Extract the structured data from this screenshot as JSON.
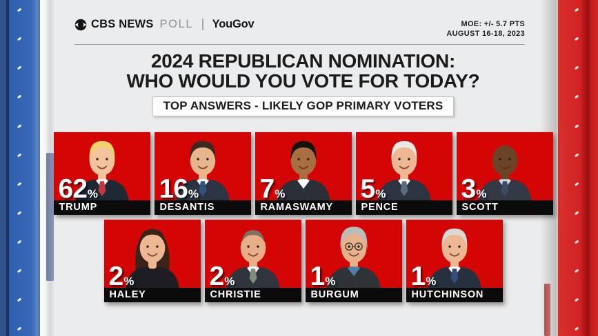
{
  "colors": {
    "bg": "#ebeced",
    "card_red": "#d40505",
    "name_bar": "#0b0b0b",
    "title_text": "#1b1b1b",
    "pct_text": "#ffffff",
    "edge_blue": "#3766b6",
    "edge_blue_dark": "#1c2f5d",
    "edge_red": "#d22222",
    "edge_red_dark": "#a01313"
  },
  "header": {
    "logo": {
      "eye_icon": "cbs-eye-icon",
      "network": "CBS NEWS",
      "program": "POLL",
      "partner": "YouGov"
    },
    "moe": {
      "line1": "MOE: +/- 5.7 PTS",
      "line2": "AUGUST 16-18, 2023"
    }
  },
  "title": {
    "line1": "2024 REPUBLICAN NOMINATION:",
    "line2": "WHO WOULD YOU VOTE FOR TODAY?"
  },
  "subtitle": "TOP ANSWERS - LIKELY GOP PRIMARY VOTERS",
  "unit": "%",
  "chart_data": {
    "type": "bar",
    "title": "2024 Republican Nomination: Who would you vote for today?",
    "subtitle": "Top answers - likely GOP primary voters",
    "note": "MOE: +/- 5.7 PTS | AUGUST 16-18, 2023",
    "unit": "percent",
    "categories": [
      "TRUMP",
      "DESANTIS",
      "RAMASWAMY",
      "PENCE",
      "SCOTT",
      "HALEY",
      "CHRISTIE",
      "BURGUM",
      "HUTCHINSON"
    ],
    "values": [
      62,
      16,
      7,
      5,
      3,
      2,
      2,
      1,
      1
    ],
    "layout": "pictogram grid, 5 cards top row, 4 cards bottom row"
  },
  "candidates": [
    {
      "name": "TRUMP",
      "pct": 62,
      "avatar": {
        "style": "short",
        "skin": "#f4c49c",
        "hair": "#f0d268",
        "suit": "#1f2835",
        "shirt": "#ffffff",
        "tie": "#c03a3a",
        "glasses": false
      }
    },
    {
      "name": "DESANTIS",
      "pct": 16,
      "avatar": {
        "style": "short",
        "skin": "#e9b58c",
        "hair": "#3b2a20",
        "suit": "#2a3442",
        "shirt": "#ffffff",
        "tie": "#33527a",
        "glasses": false
      }
    },
    {
      "name": "RAMASWAMY",
      "pct": 7,
      "avatar": {
        "style": "short",
        "skin": "#a96f42",
        "hair": "#16120f",
        "suit": "#2b2f38",
        "shirt": "#ffffff",
        "tie": "",
        "glasses": false
      }
    },
    {
      "name": "PENCE",
      "pct": 5,
      "avatar": {
        "style": "short",
        "skin": "#efb894",
        "hair": "#e8e8e8",
        "suit": "#2c3440",
        "shirt": "#ffffff",
        "tie": "#5b6b80",
        "glasses": false
      }
    },
    {
      "name": "SCOTT",
      "pct": 3,
      "avatar": {
        "style": "bald",
        "skin": "#6b4427",
        "hair": "",
        "suit": "#333a45",
        "shirt": "#cdd8e4",
        "tie": "#3a4a63",
        "glasses": false
      }
    },
    {
      "name": "HALEY",
      "pct": 2,
      "avatar": {
        "style": "long",
        "skin": "#edb794",
        "hair": "#3a241a",
        "suit": "#1d1d22",
        "shirt": "",
        "tie": "",
        "glasses": false
      }
    },
    {
      "name": "CHRISTIE",
      "pct": 2,
      "avatar": {
        "style": "receding",
        "skin": "#e9ae88",
        "hair": "#7d7365",
        "suit": "#30353d",
        "shirt": "#ffffff",
        "tie": "#7d8f7a",
        "glasses": false
      }
    },
    {
      "name": "BURGUM",
      "pct": 1,
      "avatar": {
        "style": "curly",
        "skin": "#e7b18b",
        "hair": "#b9bcb9",
        "suit": "#2e3338",
        "shirt": "#4f7fa8",
        "tie": "",
        "glasses": true
      }
    },
    {
      "name": "HUTCHINSON",
      "pct": 1,
      "avatar": {
        "style": "short",
        "skin": "#eeb793",
        "hair": "#d9d9d6",
        "suit": "#27303e",
        "shirt": "#ffffff",
        "tie": "#334f7d",
        "glasses": false
      }
    }
  ]
}
